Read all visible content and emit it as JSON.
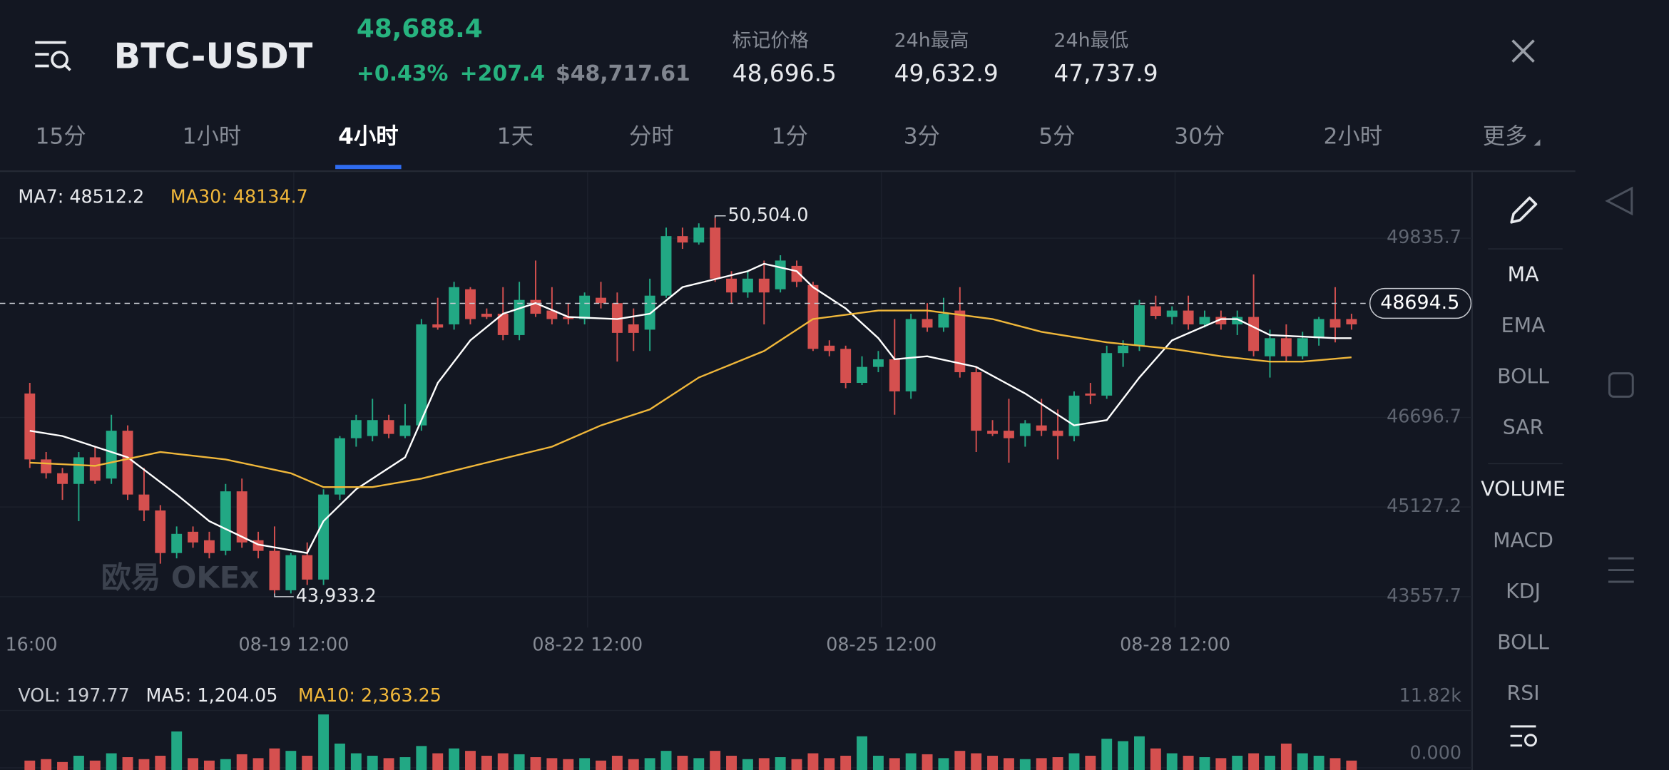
{
  "header": {
    "pair": "BTC-USDT",
    "last_price": "48,688.4",
    "change_percent": "+0.43%",
    "change": "+207.4",
    "usd_price": "$48,717.61",
    "stats": [
      {
        "label": "标记价格",
        "value": "48,696.5"
      },
      {
        "label": "24h最高",
        "value": "49,632.9"
      },
      {
        "label": "24h最低",
        "value": "47,737.9"
      }
    ]
  },
  "tabs": {
    "items": [
      "15分",
      "1小时",
      "4小时",
      "1天",
      "分时",
      "1分",
      "3分",
      "5分",
      "30分",
      "2小时",
      "更多"
    ],
    "active": 2
  },
  "chart": {
    "ma7_label": "MA7: 48512.2",
    "ma30_label": "MA30: 48134.7",
    "ylim": [
      43017,
      50991
    ],
    "yticks": [
      49835.7,
      46696.7,
      45127.2,
      43557.7
    ],
    "current_price": 48694.5,
    "high_label": "50,504.0",
    "low_label": "43,933.2",
    "watermark": "欧易 OKEx",
    "x_labels": [
      "16:00",
      "08-19 12:00",
      "08-22 12:00",
      "08-25 12:00",
      "08-28 12:00"
    ],
    "colors": {
      "up": "#22a884",
      "down": "#d5504f",
      "ma7": "#ffffff",
      "ma30": "#f0b73a"
    },
    "candles": [
      [
        47116,
        47302,
        45812,
        45961
      ],
      [
        45961,
        46091,
        45626,
        45719
      ],
      [
        45719,
        45812,
        45253,
        45532
      ],
      [
        45532,
        46091,
        44880,
        45998
      ],
      [
        45998,
        46184,
        45532,
        45588
      ],
      [
        45626,
        46743,
        45532,
        46464
      ],
      [
        46464,
        46557,
        45253,
        45346
      ],
      [
        45346,
        45812,
        44880,
        45067
      ],
      [
        45067,
        45160,
        44135,
        44321
      ],
      [
        44321,
        44787,
        44228,
        44657
      ],
      [
        44694,
        44787,
        44414,
        44507
      ],
      [
        44545,
        44694,
        44228,
        44321
      ],
      [
        44359,
        45532,
        44284,
        45402
      ],
      [
        45402,
        45626,
        44414,
        44507
      ],
      [
        44545,
        44694,
        44228,
        44359
      ],
      [
        44359,
        44787,
        43613,
        43669
      ],
      [
        43669,
        44321,
        43613,
        44284
      ],
      [
        44284,
        44507,
        43762,
        43856
      ],
      [
        43856,
        45439,
        43762,
        45346
      ],
      [
        45346,
        46371,
        45253,
        46333
      ],
      [
        46333,
        46743,
        46184,
        46650
      ],
      [
        46371,
        47023,
        46278,
        46650
      ],
      [
        46650,
        46743,
        46333,
        46408
      ],
      [
        46371,
        46930,
        46333,
        46557
      ],
      [
        46557,
        48420,
        46464,
        48327
      ],
      [
        48327,
        48793,
        48234,
        48271
      ],
      [
        48327,
        49072,
        48234,
        48979
      ],
      [
        48942,
        48979,
        48327,
        48420
      ],
      [
        48513,
        48606,
        48420,
        48457
      ],
      [
        48513,
        48979,
        48048,
        48140
      ],
      [
        48140,
        49072,
        48048,
        48755
      ],
      [
        48755,
        49445,
        48457,
        48513
      ],
      [
        48569,
        48979,
        48327,
        48420
      ],
      [
        48457,
        48699,
        48327,
        48420
      ],
      [
        48420,
        48886,
        48327,
        48830
      ],
      [
        48793,
        49072,
        48606,
        48699
      ],
      [
        48699,
        48886,
        47675,
        48178
      ],
      [
        48327,
        48606,
        47861,
        48178
      ],
      [
        48234,
        49128,
        47861,
        48830
      ],
      [
        48830,
        50022,
        48793,
        49873
      ],
      [
        49873,
        50022,
        49650,
        49761
      ],
      [
        49761,
        50097,
        49724,
        50022
      ],
      [
        50022,
        50190,
        49072,
        49128
      ],
      [
        49128,
        49259,
        48699,
        48886
      ],
      [
        48886,
        49259,
        48793,
        49128
      ],
      [
        49128,
        49445,
        48327,
        48886
      ],
      [
        48942,
        49538,
        48886,
        49445
      ],
      [
        49352,
        49445,
        48979,
        49072
      ],
      [
        49016,
        49072,
        47861,
        47898
      ],
      [
        47954,
        48048,
        47768,
        47861
      ],
      [
        47898,
        47954,
        47209,
        47302
      ],
      [
        47302,
        47768,
        47265,
        47582
      ],
      [
        47582,
        47861,
        47489,
        47715
      ],
      [
        47715,
        48420,
        46743,
        47153
      ],
      [
        47153,
        48513,
        47023,
        48420
      ],
      [
        48420,
        48699,
        48197,
        48271
      ],
      [
        48271,
        48793,
        48197,
        48513
      ],
      [
        48569,
        48979,
        47395,
        47489
      ],
      [
        47489,
        47582,
        46091,
        46464
      ],
      [
        46464,
        46650,
        46371,
        46408
      ],
      [
        46464,
        47023,
        45905,
        46333
      ],
      [
        46371,
        46650,
        46184,
        46594
      ],
      [
        46557,
        47023,
        46371,
        46464
      ],
      [
        46464,
        46836,
        45961,
        46371
      ],
      [
        46371,
        47153,
        46278,
        47079
      ],
      [
        47116,
        47302,
        46930,
        47079
      ],
      [
        47079,
        47954,
        47023,
        47824
      ],
      [
        47824,
        48048,
        47582,
        47954
      ],
      [
        47954,
        48755,
        47861,
        48662
      ],
      [
        48643,
        48830,
        48420,
        48476
      ],
      [
        48457,
        48643,
        48327,
        48569
      ],
      [
        48569,
        48830,
        48234,
        48327
      ],
      [
        48327,
        48569,
        48271,
        48457
      ],
      [
        48457,
        48569,
        48234,
        48327
      ],
      [
        48327,
        48569,
        48140,
        48457
      ],
      [
        48457,
        49203,
        47768,
        47861
      ],
      [
        47768,
        48234,
        47395,
        48085
      ],
      [
        48085,
        48327,
        47675,
        47768
      ],
      [
        47768,
        48197,
        47715,
        48085
      ],
      [
        48085,
        48457,
        47954,
        48420
      ],
      [
        48420,
        48979,
        48011,
        48271
      ],
      [
        48420,
        48513,
        48234,
        48327
      ]
    ],
    "ma7": {
      "x": [
        0,
        2,
        6,
        9,
        11,
        14,
        17,
        18,
        20,
        23,
        25,
        27,
        29,
        31,
        33,
        36,
        38,
        40,
        44,
        45,
        47,
        48,
        50,
        52,
        53,
        55,
        58,
        61,
        64,
        66,
        68,
        70,
        73,
        74,
        76,
        80,
        81
      ],
      "values": [
        46464,
        46371,
        45998,
        45346,
        44880,
        44470,
        44321,
        44880,
        45439,
        45998,
        47302,
        48048,
        48513,
        48699,
        48457,
        48420,
        48513,
        48979,
        49259,
        49389,
        49259,
        48979,
        48606,
        48085,
        47715,
        47768,
        47582,
        47116,
        46557,
        46650,
        47395,
        48048,
        48420,
        48420,
        48140,
        48085,
        48085
      ]
    },
    "ma30": {
      "x": [
        0,
        4,
        8,
        12,
        16,
        18,
        21,
        24,
        28,
        32,
        35,
        38,
        41,
        45,
        48,
        52,
        55,
        59,
        62,
        66,
        70,
        73,
        76,
        78,
        81
      ],
      "values": [
        45905,
        45849,
        46091,
        45961,
        45719,
        45477,
        45477,
        45626,
        45905,
        46184,
        46557,
        46836,
        47395,
        47861,
        48420,
        48569,
        48569,
        48420,
        48197,
        48011,
        47898,
        47768,
        47675,
        47675,
        47750
      ]
    }
  },
  "volume": {
    "vol_label": "VOL: 197.77",
    "ma5_label": "MA5: 1,204.05",
    "ma10_label": "MA10: 2,363.25",
    "ylim": [
      0,
      11820
    ],
    "yticks": [
      {
        "value": 11820,
        "label": "11.82k"
      },
      {
        "value": 0,
        "label": "0.000"
      }
    ],
    "values": [
      1500,
      1800,
      1200,
      2500,
      1500,
      3000,
      2200,
      1800,
      2500,
      7500,
      2000,
      1500,
      1800,
      2800,
      2000,
      4000,
      3500,
      2500,
      11000,
      5000,
      3000,
      2500,
      2000,
      2200,
      4500,
      3000,
      4000,
      3500,
      2500,
      3000,
      2800,
      2200,
      2000,
      1800,
      2000,
      1500,
      2500,
      1800,
      2000,
      3500,
      2500,
      2000,
      3500,
      2500,
      1800,
      2000,
      2200,
      1800,
      3000,
      2000,
      2500,
      6500,
      2500,
      2000,
      3000,
      2800,
      2000,
      3500,
      3000,
      2500,
      2000,
      1800,
      2000,
      2200,
      3000,
      2500,
      6000,
      5500,
      6500,
      4000,
      3000,
      2500,
      2200,
      2000,
      2500,
      3000,
      2500,
      5000,
      3000,
      2500,
      2000,
      1500
    ]
  },
  "side_panel": {
    "items": [
      "MA",
      "EMA",
      "BOLL",
      "SAR",
      "VOLUME",
      "MACD",
      "KDJ",
      "BOLL",
      "RSI"
    ]
  }
}
